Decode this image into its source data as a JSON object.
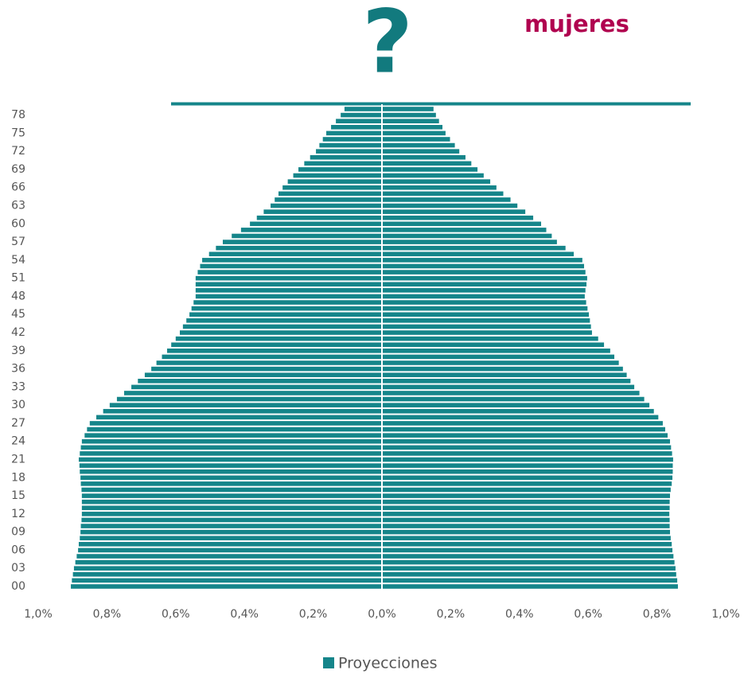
{
  "chart_data": {
    "type": "pyramid",
    "annotations": [
      "?",
      "mujeres"
    ],
    "categories": [
      "00",
      null,
      null,
      "03",
      null,
      null,
      "06",
      null,
      null,
      "09",
      null,
      null,
      "12",
      null,
      null,
      "15",
      null,
      null,
      "18",
      null,
      null,
      "21",
      null,
      null,
      "24",
      null,
      null,
      "27",
      null,
      null,
      "30",
      null,
      null,
      "33",
      null,
      null,
      "36",
      null,
      null,
      "39",
      null,
      null,
      "42",
      null,
      null,
      "45",
      null,
      null,
      "48",
      null,
      null,
      "51",
      null,
      null,
      "54",
      null,
      null,
      "57",
      null,
      null,
      "60",
      null,
      null,
      "63",
      null,
      null,
      "66",
      null,
      null,
      "69",
      null,
      null,
      "72",
      null,
      null,
      "75",
      null,
      null,
      "78",
      null
    ],
    "series": [
      {
        "name": "Proyecciones",
        "color": "#15858a",
        "values": [
          -0.905,
          -0.902,
          -0.899,
          -0.896,
          -0.892,
          -0.888,
          -0.884,
          -0.882,
          -0.879,
          -0.877,
          -0.876,
          -0.874,
          -0.873,
          -0.873,
          -0.873,
          -0.873,
          -0.874,
          -0.876,
          -0.877,
          -0.879,
          -0.88,
          -0.882,
          -0.879,
          -0.876,
          -0.873,
          -0.865,
          -0.858,
          -0.85,
          -0.831,
          -0.811,
          -0.792,
          -0.771,
          -0.75,
          -0.729,
          -0.71,
          -0.69,
          -0.671,
          -0.656,
          -0.64,
          -0.625,
          -0.613,
          -0.6,
          -0.588,
          -0.579,
          -0.569,
          -0.56,
          -0.554,
          -0.548,
          -0.542,
          -0.542,
          -0.542,
          -0.542,
          -0.536,
          -0.529,
          -0.523,
          -0.503,
          -0.483,
          -0.463,
          -0.437,
          -0.41,
          -0.384,
          -0.364,
          -0.344,
          -0.324,
          -0.312,
          -0.301,
          -0.289,
          -0.274,
          -0.258,
          -0.243,
          -0.226,
          -0.209,
          -0.192,
          -0.182,
          -0.172,
          -0.162,
          -0.148,
          -0.134,
          -0.12,
          -0.109
        ]
      },
      {
        "color": "#15858a",
        "values": [
          0.861,
          0.859,
          0.856,
          0.854,
          0.851,
          0.848,
          0.845,
          0.843,
          0.84,
          0.838,
          0.837,
          0.837,
          0.836,
          0.837,
          0.837,
          0.838,
          0.84,
          0.843,
          0.845,
          0.846,
          0.846,
          0.847,
          0.844,
          0.841,
          0.838,
          0.831,
          0.824,
          0.817,
          0.804,
          0.791,
          0.778,
          0.763,
          0.749,
          0.734,
          0.723,
          0.712,
          0.701,
          0.689,
          0.676,
          0.664,
          0.646,
          0.629,
          0.611,
          0.608,
          0.605,
          0.602,
          0.598,
          0.594,
          0.59,
          0.592,
          0.595,
          0.597,
          0.592,
          0.588,
          0.583,
          0.558,
          0.534,
          0.509,
          0.494,
          0.478,
          0.463,
          0.44,
          0.417,
          0.394,
          0.374,
          0.353,
          0.333,
          0.315,
          0.296,
          0.278,
          0.26,
          0.243,
          0.225,
          0.212,
          0.198,
          0.185,
          0.176,
          0.166,
          0.157,
          0.15
        ]
      }
    ],
    "xlim": [
      -1,
      1
    ],
    "xticks": [
      {
        "value": -1,
        "label": "1,0%"
      },
      {
        "value": -0.8,
        "label": "0,8%"
      },
      {
        "value": -0.6,
        "label": "0,6%"
      },
      {
        "value": -0.4,
        "label": "0,4%"
      },
      {
        "value": -0.2,
        "label": "0,2%"
      },
      {
        "value": 0,
        "label": "0,0%"
      },
      {
        "value": 0.2,
        "label": "0,2%"
      },
      {
        "value": 0.4,
        "label": "0,4%"
      },
      {
        "value": 0.6,
        "label": "0,6%"
      },
      {
        "value": 0.8,
        "label": "0,8%"
      },
      {
        "value": 1,
        "label": "1,0%"
      }
    ],
    "legend": "bottom"
  }
}
